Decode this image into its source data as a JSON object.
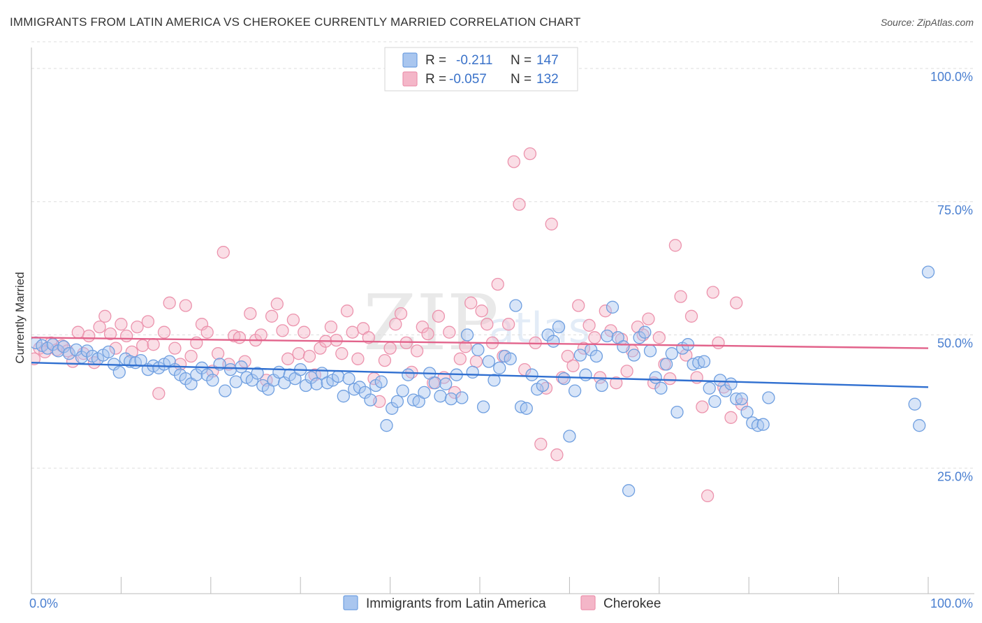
{
  "title": "IMMIGRANTS FROM LATIN AMERICA VS CHEROKEE CURRENTLY MARRIED CORRELATION CHART",
  "source": "Source: ZipAtlas.com",
  "watermark": "ZIPatlas",
  "colors": {
    "blue_fill": "#a9c6ef",
    "blue_stroke": "#6f9fe0",
    "blue_line": "#2f6fd0",
    "pink_fill": "#f4b6c8",
    "pink_stroke": "#ec93ad",
    "pink_line": "#e2638b",
    "tick_text": "#4a7fd0",
    "grid": "#dddddd"
  },
  "legend": {
    "rows": [
      {
        "r_label": "R = ",
        "r_value": "-0.211",
        "n_label": "N = ",
        "n_value": "147"
      },
      {
        "r_label": "R = ",
        "r_value": "-0.057",
        "n_label": "N = ",
        "n_value": "132"
      }
    ]
  },
  "chart_data": {
    "type": "scatter",
    "title": "IMMIGRANTS FROM LATIN AMERICA VS CHEROKEE CURRENTLY MARRIED CORRELATION CHART",
    "xlabel": "",
    "ylabel": "Currently Married",
    "xlim": [
      0,
      100
    ],
    "ylim": [
      0,
      105
    ],
    "x_tick_labels": [
      "0.0%",
      "100.0%"
    ],
    "y_ticks": [
      25,
      50,
      75,
      100
    ],
    "y_tick_labels": [
      "25.0%",
      "50.0%",
      "75.0%",
      "100.0%"
    ],
    "grid": "horizontal dashed",
    "legend_position": "top-center",
    "series": [
      {
        "name": "Immigrants from Latin America",
        "r": -0.211,
        "n": 147,
        "trend": {
          "x": [
            0,
            100
          ],
          "y": [
            44.8,
            40.2
          ]
        },
        "points": [
          [
            0.5,
            48.5
          ],
          [
            1.2,
            48.0
          ],
          [
            1.8,
            47.5
          ],
          [
            2.4,
            48.2
          ],
          [
            3.0,
            47.0
          ],
          [
            3.6,
            47.8
          ],
          [
            4.2,
            46.5
          ],
          [
            5.0,
            47.2
          ],
          [
            5.6,
            45.8
          ],
          [
            6.2,
            47.0
          ],
          [
            6.8,
            46.0
          ],
          [
            7.4,
            45.5
          ],
          [
            8.0,
            46.2
          ],
          [
            8.6,
            46.8
          ],
          [
            9.2,
            44.5
          ],
          [
            9.8,
            43.0
          ],
          [
            10.5,
            45.5
          ],
          [
            11.0,
            45.0
          ],
          [
            11.6,
            44.8
          ],
          [
            12.2,
            45.2
          ],
          [
            13.0,
            43.5
          ],
          [
            13.6,
            44.2
          ],
          [
            14.2,
            43.8
          ],
          [
            14.8,
            44.5
          ],
          [
            15.4,
            45.0
          ],
          [
            16.0,
            43.5
          ],
          [
            16.6,
            42.5
          ],
          [
            17.2,
            41.8
          ],
          [
            17.8,
            40.8
          ],
          [
            18.4,
            42.5
          ],
          [
            19.0,
            43.8
          ],
          [
            19.6,
            42.5
          ],
          [
            20.2,
            41.5
          ],
          [
            21.0,
            44.5
          ],
          [
            21.6,
            39.5
          ],
          [
            22.2,
            43.5
          ],
          [
            22.8,
            41.2
          ],
          [
            23.4,
            44.0
          ],
          [
            24.0,
            42.0
          ],
          [
            24.6,
            41.5
          ],
          [
            25.2,
            42.8
          ],
          [
            25.8,
            40.5
          ],
          [
            26.4,
            39.8
          ],
          [
            27.0,
            41.5
          ],
          [
            27.6,
            43.0
          ],
          [
            28.2,
            41.0
          ],
          [
            28.8,
            42.5
          ],
          [
            29.4,
            41.8
          ],
          [
            30.0,
            43.5
          ],
          [
            30.6,
            40.5
          ],
          [
            31.2,
            42.0
          ],
          [
            31.8,
            40.8
          ],
          [
            32.4,
            42.8
          ],
          [
            33.0,
            41.0
          ],
          [
            33.6,
            41.5
          ],
          [
            34.2,
            42.2
          ],
          [
            34.8,
            38.5
          ],
          [
            35.4,
            41.8
          ],
          [
            36.0,
            39.8
          ],
          [
            36.6,
            40.2
          ],
          [
            37.2,
            39.2
          ],
          [
            37.8,
            37.8
          ],
          [
            38.4,
            40.5
          ],
          [
            39.0,
            41.2
          ],
          [
            39.6,
            33.0
          ],
          [
            40.2,
            36.2
          ],
          [
            40.8,
            37.5
          ],
          [
            41.4,
            39.5
          ],
          [
            42.0,
            42.5
          ],
          [
            42.6,
            37.8
          ],
          [
            43.2,
            37.5
          ],
          [
            43.8,
            39.2
          ],
          [
            44.4,
            42.8
          ],
          [
            45.0,
            41.0
          ],
          [
            45.6,
            38.5
          ],
          [
            46.2,
            40.8
          ],
          [
            46.8,
            38.0
          ],
          [
            47.4,
            42.5
          ],
          [
            48.0,
            38.2
          ],
          [
            48.6,
            50.0
          ],
          [
            49.2,
            43.0
          ],
          [
            49.8,
            47.2
          ],
          [
            50.4,
            36.5
          ],
          [
            51.0,
            45.0
          ],
          [
            51.6,
            41.5
          ],
          [
            52.2,
            43.8
          ],
          [
            52.8,
            46.0
          ],
          [
            53.4,
            45.5
          ],
          [
            54.0,
            55.5
          ],
          [
            54.6,
            36.5
          ],
          [
            55.2,
            36.2
          ],
          [
            55.8,
            42.5
          ],
          [
            56.4,
            39.8
          ],
          [
            57.0,
            40.5
          ],
          [
            57.6,
            50.0
          ],
          [
            58.2,
            48.8
          ],
          [
            58.8,
            51.5
          ],
          [
            59.4,
            41.8
          ],
          [
            60.0,
            31.0
          ],
          [
            60.6,
            39.5
          ],
          [
            61.2,
            46.2
          ],
          [
            61.8,
            42.5
          ],
          [
            62.4,
            47.2
          ],
          [
            63.0,
            46.0
          ],
          [
            63.6,
            40.5
          ],
          [
            64.2,
            49.8
          ],
          [
            64.8,
            55.2
          ],
          [
            65.4,
            49.5
          ],
          [
            66.0,
            47.8
          ],
          [
            66.6,
            20.8
          ],
          [
            67.2,
            46.2
          ],
          [
            67.8,
            49.5
          ],
          [
            68.4,
            50.5
          ],
          [
            69.0,
            47.0
          ],
          [
            69.6,
            42.0
          ],
          [
            70.2,
            40.0
          ],
          [
            70.8,
            44.5
          ],
          [
            71.4,
            46.5
          ],
          [
            72.0,
            35.5
          ],
          [
            72.6,
            47.5
          ],
          [
            73.2,
            48.2
          ],
          [
            73.8,
            44.5
          ],
          [
            74.4,
            44.8
          ],
          [
            75.0,
            45.0
          ],
          [
            75.6,
            40.0
          ],
          [
            76.2,
            37.5
          ],
          [
            76.8,
            41.5
          ],
          [
            77.4,
            39.5
          ],
          [
            78.0,
            40.8
          ],
          [
            78.6,
            38.0
          ],
          [
            79.2,
            38.0
          ],
          [
            79.8,
            35.5
          ],
          [
            80.4,
            33.5
          ],
          [
            81.0,
            33.0
          ],
          [
            81.6,
            33.2
          ],
          [
            82.2,
            38.2
          ],
          [
            98.5,
            37.0
          ],
          [
            99.0,
            33.0
          ],
          [
            100.0,
            61.8
          ]
        ]
      },
      {
        "name": "Cherokee",
        "r": -0.057,
        "n": 132,
        "trend": {
          "x": [
            0,
            100
          ],
          "y": [
            49.5,
            47.5
          ]
        },
        "points": [
          [
            0.3,
            45.5
          ],
          [
            0.9,
            47.5
          ],
          [
            1.5,
            46.8
          ],
          [
            2.2,
            48.5
          ],
          [
            2.8,
            47.2
          ],
          [
            3.4,
            48.0
          ],
          [
            4.0,
            47.0
          ],
          [
            4.6,
            45.0
          ],
          [
            5.2,
            50.5
          ],
          [
            5.8,
            46.5
          ],
          [
            6.4,
            49.8
          ],
          [
            7.0,
            44.8
          ],
          [
            7.6,
            51.5
          ],
          [
            8.2,
            53.5
          ],
          [
            8.8,
            50.2
          ],
          [
            9.4,
            47.5
          ],
          [
            10.0,
            52.0
          ],
          [
            10.6,
            49.8
          ],
          [
            11.2,
            46.8
          ],
          [
            11.8,
            51.5
          ],
          [
            12.4,
            48.0
          ],
          [
            13.0,
            52.5
          ],
          [
            13.6,
            48.2
          ],
          [
            14.2,
            39.0
          ],
          [
            14.8,
            50.5
          ],
          [
            15.4,
            56.0
          ],
          [
            16.0,
            47.5
          ],
          [
            16.6,
            44.5
          ],
          [
            17.2,
            55.5
          ],
          [
            17.8,
            46.0
          ],
          [
            18.4,
            48.5
          ],
          [
            19.0,
            52.0
          ],
          [
            19.6,
            50.5
          ],
          [
            20.2,
            43.2
          ],
          [
            20.8,
            46.5
          ],
          [
            21.4,
            65.5
          ],
          [
            22.0,
            44.5
          ],
          [
            22.6,
            49.8
          ],
          [
            23.2,
            49.5
          ],
          [
            23.8,
            45.0
          ],
          [
            24.4,
            54.0
          ],
          [
            25.0,
            49.0
          ],
          [
            25.6,
            50.0
          ],
          [
            26.2,
            41.5
          ],
          [
            26.8,
            53.5
          ],
          [
            27.4,
            55.8
          ],
          [
            28.0,
            50.8
          ],
          [
            28.6,
            45.5
          ],
          [
            29.2,
            52.8
          ],
          [
            29.8,
            46.5
          ],
          [
            30.4,
            50.5
          ],
          [
            31.0,
            46.0
          ],
          [
            31.6,
            42.5
          ],
          [
            32.2,
            47.5
          ],
          [
            32.8,
            48.8
          ],
          [
            33.4,
            51.5
          ],
          [
            34.0,
            49.0
          ],
          [
            34.6,
            46.5
          ],
          [
            35.2,
            54.5
          ],
          [
            35.8,
            50.5
          ],
          [
            36.4,
            45.5
          ],
          [
            37.0,
            51.2
          ],
          [
            37.6,
            49.5
          ],
          [
            38.2,
            41.8
          ],
          [
            38.8,
            37.5
          ],
          [
            39.4,
            45.2
          ],
          [
            40.0,
            47.5
          ],
          [
            40.6,
            52.0
          ],
          [
            41.2,
            54.0
          ],
          [
            41.8,
            48.5
          ],
          [
            42.4,
            43.0
          ],
          [
            43.0,
            47.0
          ],
          [
            43.6,
            51.5
          ],
          [
            44.2,
            50.2
          ],
          [
            44.8,
            41.0
          ],
          [
            45.4,
            53.5
          ],
          [
            46.0,
            42.0
          ],
          [
            46.6,
            50.5
          ],
          [
            47.2,
            39.2
          ],
          [
            47.8,
            45.5
          ],
          [
            48.4,
            47.8
          ],
          [
            49.0,
            56.0
          ],
          [
            49.6,
            45.0
          ],
          [
            50.2,
            54.5
          ],
          [
            50.8,
            52.0
          ],
          [
            51.4,
            48.5
          ],
          [
            52.0,
            59.5
          ],
          [
            52.6,
            46.0
          ],
          [
            53.2,
            52.0
          ],
          [
            53.8,
            82.5
          ],
          [
            54.4,
            74.5
          ],
          [
            55.0,
            43.5
          ],
          [
            55.6,
            84.0
          ],
          [
            56.2,
            48.5
          ],
          [
            56.8,
            29.5
          ],
          [
            57.4,
            40.0
          ],
          [
            58.0,
            70.8
          ],
          [
            58.6,
            27.5
          ],
          [
            59.2,
            42.0
          ],
          [
            59.8,
            46.0
          ],
          [
            60.4,
            44.2
          ],
          [
            61.0,
            55.5
          ],
          [
            61.6,
            47.5
          ],
          [
            62.2,
            51.8
          ],
          [
            62.8,
            49.5
          ],
          [
            63.4,
            42.0
          ],
          [
            64.0,
            54.5
          ],
          [
            64.6,
            50.8
          ],
          [
            65.2,
            41.0
          ],
          [
            65.8,
            49.2
          ],
          [
            66.4,
            43.2
          ],
          [
            67.0,
            47.0
          ],
          [
            67.6,
            51.5
          ],
          [
            68.2,
            50.0
          ],
          [
            68.8,
            53.0
          ],
          [
            69.4,
            41.0
          ],
          [
            70.0,
            49.5
          ],
          [
            70.6,
            44.5
          ],
          [
            71.2,
            41.8
          ],
          [
            71.8,
            66.8
          ],
          [
            72.4,
            57.2
          ],
          [
            73.0,
            46.2
          ],
          [
            73.6,
            53.5
          ],
          [
            74.2,
            42.0
          ],
          [
            74.8,
            36.5
          ],
          [
            75.4,
            19.8
          ],
          [
            76.0,
            58.0
          ],
          [
            76.6,
            48.5
          ],
          [
            77.2,
            40.2
          ],
          [
            78.0,
            34.5
          ],
          [
            78.6,
            56.0
          ],
          [
            79.2,
            37.0
          ]
        ]
      }
    ]
  },
  "bottom_legend": [
    {
      "label": "Immigrants from Latin America"
    },
    {
      "label": "Cherokee"
    }
  ]
}
